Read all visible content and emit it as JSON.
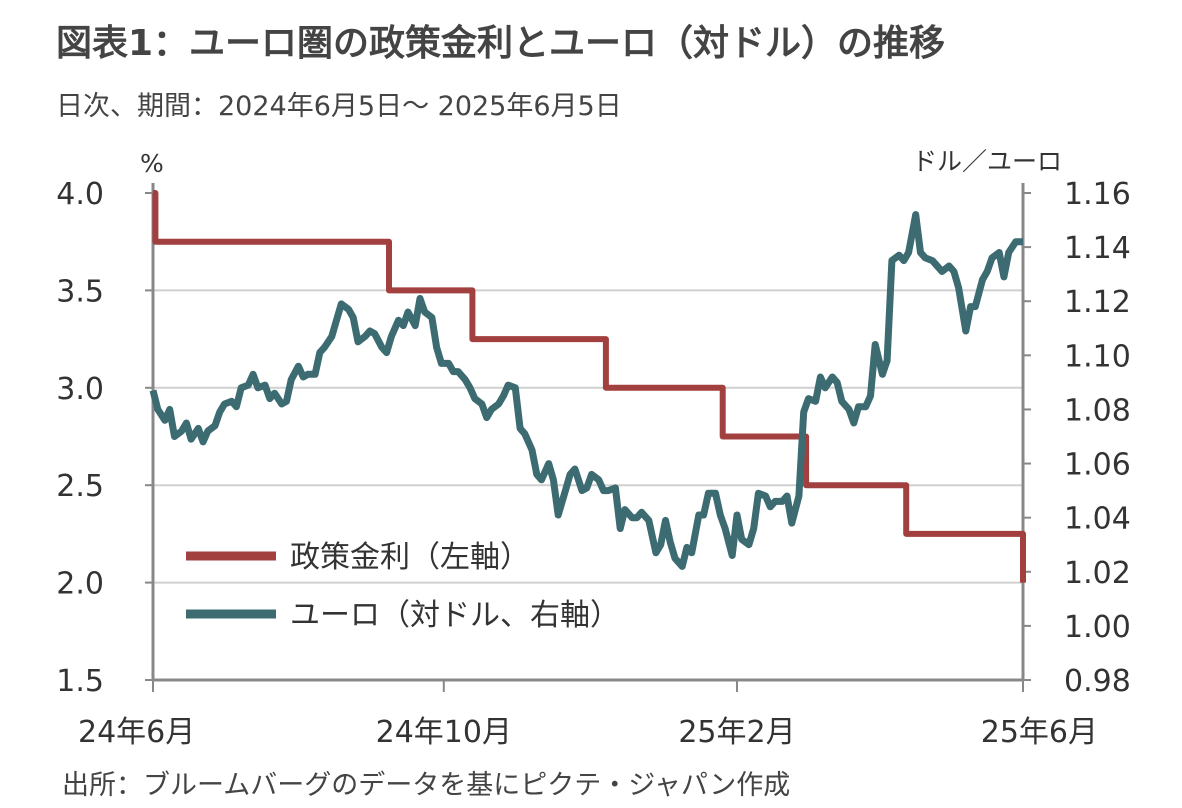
{
  "header": {
    "title": "図表1：ユーロ圏の政策金利とユーロ（対ドル）の推移",
    "subtitle": "日次、期間：2024年6月5日～ 2025年6月5日"
  },
  "footer": {
    "source": "出所：ブルームバーグのデータを基にピクテ・ジャパン作成"
  },
  "colors": {
    "policy_rate": "#a23f3f",
    "euro": "#3c6b71",
    "grid": "#d0d0d0",
    "axis": "#888888"
  },
  "chart_data": {
    "type": "line",
    "title": "",
    "y_left": {
      "unit": "%",
      "ylim": [
        1.5,
        4.0
      ],
      "ticks": [
        "4.0",
        "3.5",
        "3.0",
        "2.5",
        "2.0",
        "1.5"
      ]
    },
    "y_right": {
      "unit": "ドル／ユーロ",
      "ylim": [
        0.98,
        1.16
      ],
      "ticks": [
        "1.16",
        "1.14",
        "1.12",
        "1.10",
        "1.08",
        "1.06",
        "1.04",
        "1.02",
        "1.00",
        "0.98"
      ]
    },
    "x_range": [
      "2024-06-05",
      "2025-06-05"
    ],
    "x_ticks": [
      {
        "date": "2024-06-05",
        "label": "24年6月"
      },
      {
        "date": "2024-10-05",
        "label": "24年10月"
      },
      {
        "date": "2025-02-05",
        "label": "25年2月"
      },
      {
        "date": "2025-06-05",
        "label": "25年6月"
      }
    ],
    "grid": true,
    "legend_position": "bottom-left",
    "series": [
      {
        "name": "政策金利（左軸）",
        "axis": "left",
        "step": true,
        "points": [
          [
            "2024-06-05",
            4.0
          ],
          [
            "2024-06-06",
            3.75
          ],
          [
            "2024-09-12",
            3.5
          ],
          [
            "2024-10-17",
            3.25
          ],
          [
            "2024-12-12",
            3.0
          ],
          [
            "2025-01-30",
            2.75
          ],
          [
            "2025-03-06",
            2.5
          ],
          [
            "2025-04-17",
            2.25
          ],
          [
            "2025-06-05",
            2.0
          ]
        ]
      },
      {
        "name": "ユーロ（対ドル、右軸）",
        "axis": "right",
        "points": [
          [
            "2024-06-05",
            1.087
          ],
          [
            "2024-06-07",
            1.08
          ],
          [
            "2024-06-10",
            1.076
          ],
          [
            "2024-06-12",
            1.08
          ],
          [
            "2024-06-14",
            1.07
          ],
          [
            "2024-06-17",
            1.072
          ],
          [
            "2024-06-19",
            1.075
          ],
          [
            "2024-06-21",
            1.069
          ],
          [
            "2024-06-24",
            1.073
          ],
          [
            "2024-06-26",
            1.068
          ],
          [
            "2024-06-28",
            1.072
          ],
          [
            "2024-07-01",
            1.074
          ],
          [
            "2024-07-03",
            1.079
          ],
          [
            "2024-07-05",
            1.082
          ],
          [
            "2024-07-08",
            1.083
          ],
          [
            "2024-07-10",
            1.081
          ],
          [
            "2024-07-12",
            1.088
          ],
          [
            "2024-07-15",
            1.089
          ],
          [
            "2024-07-17",
            1.093
          ],
          [
            "2024-07-19",
            1.088
          ],
          [
            "2024-07-22",
            1.089
          ],
          [
            "2024-07-24",
            1.084
          ],
          [
            "2024-07-26",
            1.086
          ],
          [
            "2024-07-29",
            1.082
          ],
          [
            "2024-07-31",
            1.083
          ],
          [
            "2024-08-02",
            1.091
          ],
          [
            "2024-08-05",
            1.096
          ],
          [
            "2024-08-07",
            1.092
          ],
          [
            "2024-08-09",
            1.093
          ],
          [
            "2024-08-12",
            1.093
          ],
          [
            "2024-08-14",
            1.101
          ],
          [
            "2024-08-16",
            1.103
          ],
          [
            "2024-08-19",
            1.107
          ],
          [
            "2024-08-21",
            1.113
          ],
          [
            "2024-08-23",
            1.119
          ],
          [
            "2024-08-26",
            1.117
          ],
          [
            "2024-08-28",
            1.114
          ],
          [
            "2024-08-30",
            1.105
          ],
          [
            "2024-09-02",
            1.107
          ],
          [
            "2024-09-04",
            1.109
          ],
          [
            "2024-09-06",
            1.108
          ],
          [
            "2024-09-09",
            1.103
          ],
          [
            "2024-09-11",
            1.101
          ],
          [
            "2024-09-13",
            1.107
          ],
          [
            "2024-09-16",
            1.113
          ],
          [
            "2024-09-18",
            1.111
          ],
          [
            "2024-09-20",
            1.116
          ],
          [
            "2024-09-23",
            1.111
          ],
          [
            "2024-09-25",
            1.121
          ],
          [
            "2024-09-27",
            1.116
          ],
          [
            "2024-09-30",
            1.114
          ],
          [
            "2024-10-02",
            1.103
          ],
          [
            "2024-10-04",
            1.097
          ],
          [
            "2024-10-07",
            1.097
          ],
          [
            "2024-10-09",
            1.094
          ],
          [
            "2024-10-11",
            1.094
          ],
          [
            "2024-10-14",
            1.091
          ],
          [
            "2024-10-16",
            1.088
          ],
          [
            "2024-10-18",
            1.084
          ],
          [
            "2024-10-21",
            1.082
          ],
          [
            "2024-10-23",
            1.077
          ],
          [
            "2024-10-25",
            1.08
          ],
          [
            "2024-10-28",
            1.082
          ],
          [
            "2024-10-30",
            1.085
          ],
          [
            "2024-11-01",
            1.089
          ],
          [
            "2024-11-04",
            1.088
          ],
          [
            "2024-11-06",
            1.073
          ],
          [
            "2024-11-08",
            1.071
          ],
          [
            "2024-11-11",
            1.065
          ],
          [
            "2024-11-13",
            1.056
          ],
          [
            "2024-11-15",
            1.054
          ],
          [
            "2024-11-18",
            1.06
          ],
          [
            "2024-11-20",
            1.054
          ],
          [
            "2024-11-22",
            1.041
          ],
          [
            "2024-11-25",
            1.05
          ],
          [
            "2024-11-27",
            1.056
          ],
          [
            "2024-11-29",
            1.058
          ],
          [
            "2024-12-02",
            1.05
          ],
          [
            "2024-12-04",
            1.051
          ],
          [
            "2024-12-06",
            1.056
          ],
          [
            "2024-12-09",
            1.054
          ],
          [
            "2024-12-11",
            1.05
          ],
          [
            "2024-12-13",
            1.05
          ],
          [
            "2024-12-16",
            1.051
          ],
          [
            "2024-12-18",
            1.036
          ],
          [
            "2024-12-20",
            1.043
          ],
          [
            "2024-12-23",
            1.04
          ],
          [
            "2024-12-25",
            1.04
          ],
          [
            "2024-12-27",
            1.042
          ],
          [
            "2024-12-30",
            1.039
          ],
          [
            "2025-01-02",
            1.027
          ],
          [
            "2025-01-04",
            1.03
          ],
          [
            "2025-01-06",
            1.039
          ],
          [
            "2025-01-08",
            1.031
          ],
          [
            "2025-01-10",
            1.025
          ],
          [
            "2025-01-13",
            1.022
          ],
          [
            "2025-01-15",
            1.029
          ],
          [
            "2025-01-17",
            1.027
          ],
          [
            "2025-01-20",
            1.041
          ],
          [
            "2025-01-22",
            1.041
          ],
          [
            "2025-01-24",
            1.049
          ],
          [
            "2025-01-27",
            1.049
          ],
          [
            "2025-01-29",
            1.041
          ],
          [
            "2025-01-31",
            1.036
          ],
          [
            "2025-02-03",
            1.026
          ],
          [
            "2025-02-05",
            1.041
          ],
          [
            "2025-02-07",
            1.032
          ],
          [
            "2025-02-10",
            1.03
          ],
          [
            "2025-02-12",
            1.036
          ],
          [
            "2025-02-14",
            1.049
          ],
          [
            "2025-02-17",
            1.048
          ],
          [
            "2025-02-19",
            1.044
          ],
          [
            "2025-02-21",
            1.046
          ],
          [
            "2025-02-24",
            1.046
          ],
          [
            "2025-02-26",
            1.048
          ],
          [
            "2025-02-28",
            1.038
          ],
          [
            "2025-03-03",
            1.048
          ],
          [
            "2025-03-05",
            1.079
          ],
          [
            "2025-03-07",
            1.084
          ],
          [
            "2025-03-10",
            1.083
          ],
          [
            "2025-03-12",
            1.092
          ],
          [
            "2025-03-14",
            1.088
          ],
          [
            "2025-03-17",
            1.092
          ],
          [
            "2025-03-19",
            1.09
          ],
          [
            "2025-03-21",
            1.083
          ],
          [
            "2025-03-24",
            1.08
          ],
          [
            "2025-03-26",
            1.075
          ],
          [
            "2025-03-28",
            1.081
          ],
          [
            "2025-03-31",
            1.081
          ],
          [
            "2025-04-02",
            1.085
          ],
          [
            "2025-04-04",
            1.104
          ],
          [
            "2025-04-07",
            1.093
          ],
          [
            "2025-04-09",
            1.098
          ],
          [
            "2025-04-11",
            1.135
          ],
          [
            "2025-04-14",
            1.137
          ],
          [
            "2025-04-16",
            1.135
          ],
          [
            "2025-04-18",
            1.138
          ],
          [
            "2025-04-21",
            1.152
          ],
          [
            "2025-04-23",
            1.138
          ],
          [
            "2025-04-25",
            1.136
          ],
          [
            "2025-04-28",
            1.135
          ],
          [
            "2025-04-30",
            1.133
          ],
          [
            "2025-05-02",
            1.131
          ],
          [
            "2025-05-05",
            1.133
          ],
          [
            "2025-05-07",
            1.131
          ],
          [
            "2025-05-09",
            1.125
          ],
          [
            "2025-05-12",
            1.109
          ],
          [
            "2025-05-14",
            1.118
          ],
          [
            "2025-05-16",
            1.118
          ],
          [
            "2025-05-19",
            1.128
          ],
          [
            "2025-05-21",
            1.131
          ],
          [
            "2025-05-23",
            1.136
          ],
          [
            "2025-05-26",
            1.138
          ],
          [
            "2025-05-28",
            1.129
          ],
          [
            "2025-05-30",
            1.138
          ],
          [
            "2025-06-02",
            1.142
          ],
          [
            "2025-06-05",
            1.142
          ]
        ]
      }
    ]
  }
}
